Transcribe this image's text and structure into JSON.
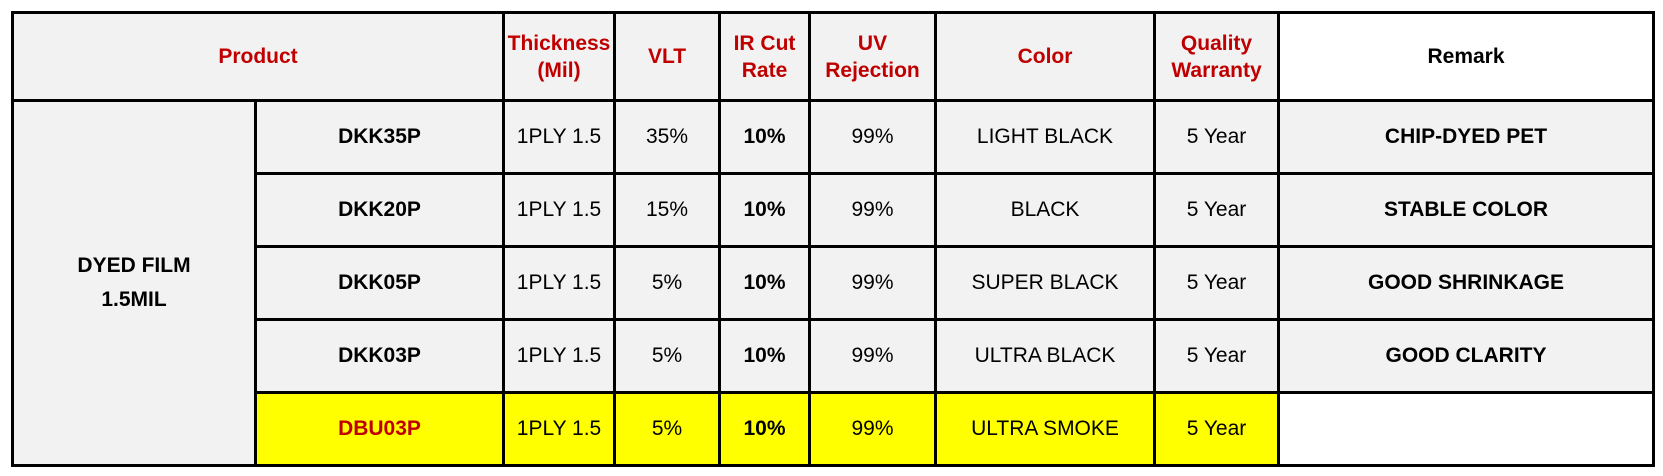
{
  "colors": {
    "header_text": "#c00000",
    "bright_red": "#ff0000",
    "highlight": "#ffff00",
    "cell_bg": "#f2f2f2"
  },
  "headers": {
    "product": "Product",
    "thickness": [
      "Thickness",
      "(Mil)"
    ],
    "vlt": "VLT",
    "ir_cut": [
      "IR Cut",
      "Rate"
    ],
    "uv": [
      "UV",
      "Rejection"
    ],
    "color": "Color",
    "warranty": [
      "Quality",
      "Warranty"
    ],
    "remark": "Remark"
  },
  "category": [
    "DYED FILM",
    "1.5MIL"
  ],
  "rows": [
    {
      "model": "DKK35P",
      "thickness": "1PLY 1.5",
      "vlt": "35%",
      "ir_cut": "10%",
      "uv": "99%",
      "color": "LIGHT BLACK",
      "warranty": "5 Year",
      "remark": "CHIP-DYED PET"
    },
    {
      "model": "DKK20P",
      "thickness": "1PLY 1.5",
      "vlt": "15%",
      "ir_cut": "10%",
      "uv": "99%",
      "color": "BLACK",
      "warranty": "5 Year",
      "remark": "STABLE COLOR"
    },
    {
      "model": "DKK05P",
      "thickness": "1PLY 1.5",
      "vlt": "5%",
      "ir_cut": "10%",
      "uv": "99%",
      "color": "SUPER BLACK",
      "warranty": "5 Year",
      "remark": "GOOD SHRINKAGE"
    },
    {
      "model": "DKK03P",
      "thickness": "1PLY 1.5",
      "vlt": "5%",
      "ir_cut": "10%",
      "uv": "99%",
      "color": "ULTRA BLACK",
      "warranty": "5 Year",
      "remark": "GOOD CLARITY"
    },
    {
      "model": "DBU03P",
      "thickness": "1PLY 1.5",
      "vlt": "5%",
      "ir_cut": "10%",
      "uv": "99%",
      "color": "ULTRA SMOKE",
      "warranty": "5 Year",
      "remark": "",
      "highlighted": true
    }
  ]
}
